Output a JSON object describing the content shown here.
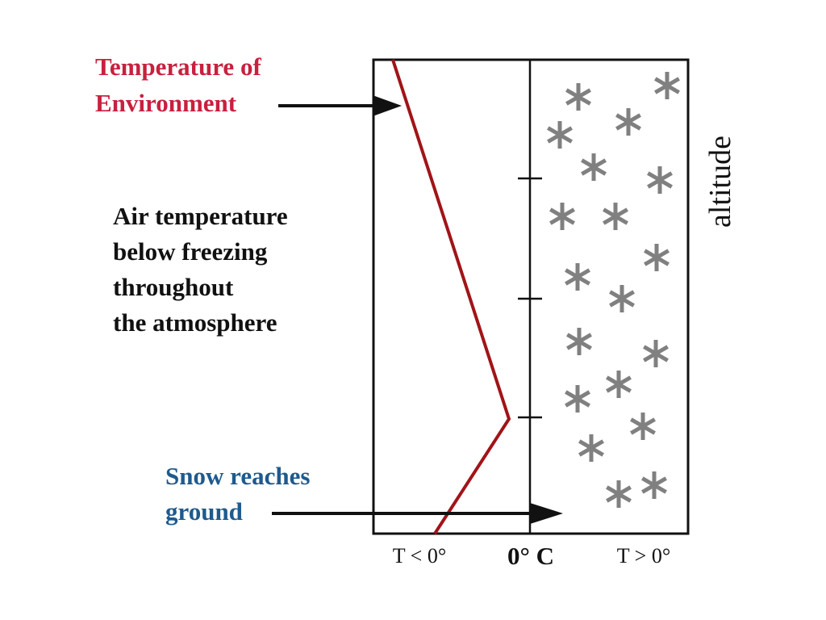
{
  "labels": {
    "env_line1": "Temperature of",
    "env_line2": "Environment",
    "air_lines": [
      "Air temperature",
      "below freezing",
      "throughout",
      "the atmosphere"
    ],
    "snow_line1": "Snow reaches",
    "snow_line2": "ground"
  },
  "axis": {
    "left": "T < 0°",
    "center": "0° C",
    "right": "T > 0°",
    "vertical": "altitude"
  },
  "colors": {
    "env_label": "#c8203e",
    "snow_label": "#1f5a8c",
    "profile_line": "#a01418",
    "snowflake": "#808080"
  },
  "icons": {
    "snowflake": "asterisk-snowflake-icon",
    "arrow": "arrow-right-icon"
  }
}
